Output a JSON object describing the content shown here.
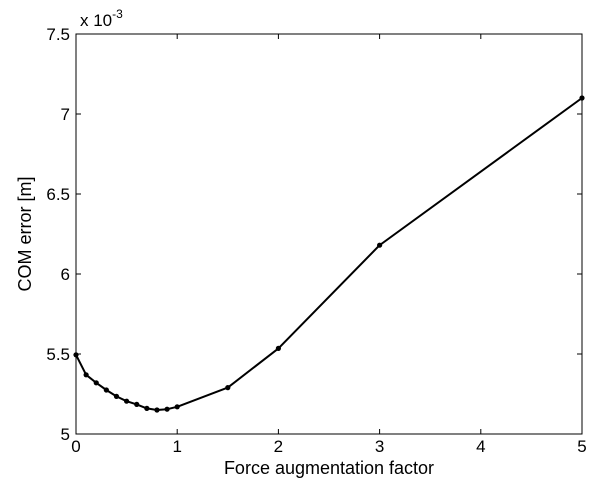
{
  "chart_data": {
    "type": "line",
    "title": "",
    "xlabel": "Force augmentation factor",
    "ylabel": "COM error [m]",
    "y_multiplier": {
      "base": "x 10",
      "exponent": "-3"
    },
    "xlim": [
      0,
      5
    ],
    "ylim": [
      5.0,
      7.5
    ],
    "x_ticks": [
      0,
      1,
      2,
      3,
      4,
      5
    ],
    "x_tick_labels": [
      "0",
      "1",
      "2",
      "3",
      "4",
      "5"
    ],
    "y_ticks": [
      5.0,
      5.5,
      6.0,
      6.5,
      7.0,
      7.5
    ],
    "y_tick_labels": [
      "5",
      "5.5",
      "6",
      "6.5",
      "7",
      "7.5"
    ],
    "grid": false,
    "series": [
      {
        "color": "#000000",
        "marker": "dot",
        "x": [
          0,
          0.1,
          0.2,
          0.3,
          0.4,
          0.5,
          0.6,
          0.7,
          0.8,
          0.9,
          1.0,
          1.5,
          2.0,
          3.0,
          5.0
        ],
        "y": [
          5.495,
          5.37,
          5.32,
          5.275,
          5.235,
          5.205,
          5.185,
          5.16,
          5.15,
          5.155,
          5.17,
          5.29,
          5.535,
          6.18,
          7.1
        ]
      }
    ]
  }
}
